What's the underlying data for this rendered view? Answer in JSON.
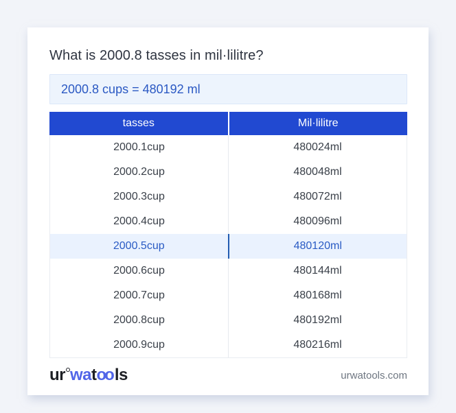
{
  "page": {
    "title": "What is 2000.8 tasses in mil·lilitre?",
    "result": "2000.8 cups = 480192 ml"
  },
  "table": {
    "headers": [
      "tasses",
      "Mil·lilitre"
    ],
    "rows": [
      [
        "2000.1cup",
        "480024ml"
      ],
      [
        "2000.2cup",
        "480048ml"
      ],
      [
        "2000.3cup",
        "480072ml"
      ],
      [
        "2000.4cup",
        "480096ml"
      ],
      [
        "2000.5cup",
        "480120ml"
      ],
      [
        "2000.6cup",
        "480144ml"
      ],
      [
        "2000.7cup",
        "480168ml"
      ],
      [
        "2000.8cup",
        "480192ml"
      ],
      [
        "2000.9cup",
        "480216ml"
      ]
    ],
    "highlighted_row_index": 4
  },
  "footer": {
    "logo": {
      "p1": "ur",
      "p2": "wa",
      "p3": "t",
      "p4": "oo",
      "p5": "ls"
    },
    "site": "urwatools.com"
  },
  "colors": {
    "page_background": "#f2f4f9",
    "card_background": "#ffffff",
    "header_blue": "#2149d1",
    "result_box_background": "#edf4fd",
    "result_text_blue": "#2b59c3",
    "highlight_row_background": "#eaf2fe",
    "highlight_text_blue": "#2a5bc4",
    "highlight_divider_blue": "#215bb0",
    "logo_blue": "#5165e8",
    "body_text": "#3a4049",
    "footer_gray": "#6e7681"
  }
}
